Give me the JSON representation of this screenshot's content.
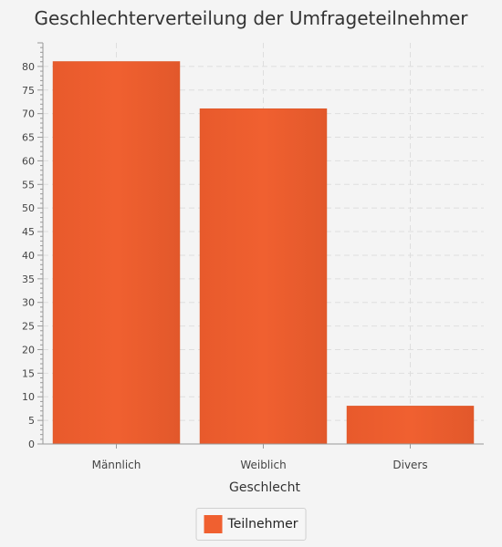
{
  "chart_data": {
    "type": "bar",
    "title": "Geschlechterverteilung der Umfrageteilnehmer",
    "xlabel": "Geschlecht",
    "ylabel": "",
    "categories": [
      "Männlich",
      "Weiblich",
      "Divers"
    ],
    "series": [
      {
        "name": "Teilnehmer",
        "values": [
          81,
          71,
          8
        ]
      }
    ],
    "ylim": [
      0,
      85
    ],
    "yticks": [
      0,
      5,
      10,
      15,
      20,
      25,
      30,
      35,
      40,
      45,
      50,
      55,
      60,
      65,
      70,
      75,
      80
    ],
    "grid": true,
    "legend_position": "bottom",
    "colors": {
      "bar": "#f06030",
      "bar_edge": "#e05a2b",
      "grid": "#dedede",
      "axis": "#999999"
    }
  }
}
